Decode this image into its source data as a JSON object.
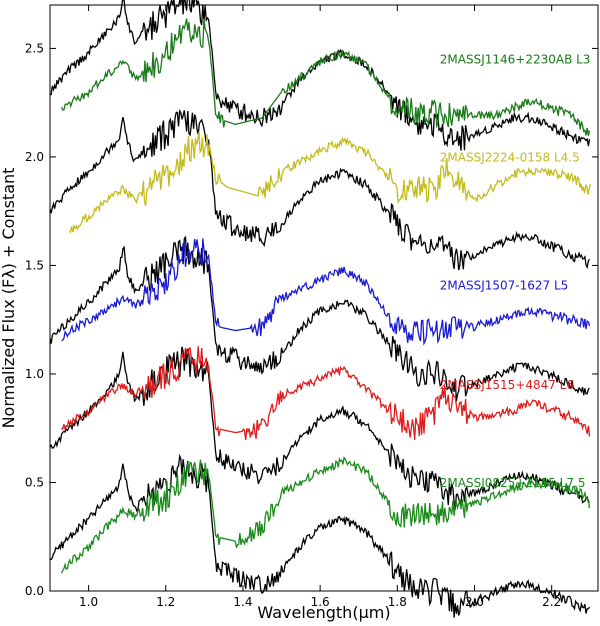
{
  "chart_data": {
    "type": "line",
    "title": "",
    "xlabel": "Wavelength(μm)",
    "ylabel": "Normalized Flux (Fλ) + Constant",
    "xlim": [
      0.9,
      2.32
    ],
    "ylim": [
      0.0,
      2.7
    ],
    "x_ticks": [
      1.0,
      1.2,
      1.4,
      1.6,
      1.8,
      2.0,
      2.2
    ],
    "x_tick_labels": [
      "1.0",
      "1.2",
      "1.4",
      "1.6",
      "1.8",
      "2.0",
      "2.2"
    ],
    "y_ticks": [
      0.0,
      0.5,
      1.0,
      1.5,
      2.0,
      2.5
    ],
    "y_tick_labels": [
      "0.0",
      "0.5",
      "1.0",
      "1.5",
      "2.0",
      "2.5"
    ],
    "grid": false,
    "series": [
      {
        "name": "2MASSJ1146+2230AB L3",
        "color": "#1a7a1a",
        "offset": 1.6,
        "label_x": 1.91,
        "label_y": 2.43,
        "gap": [
          1.35,
          1.5
        ],
        "x": [
          0.93,
          1.0,
          1.05,
          1.09,
          1.12,
          1.2,
          1.26,
          1.31,
          1.33,
          1.38,
          1.45,
          1.5,
          1.6,
          1.66,
          1.72,
          1.8,
          1.95,
          2.05,
          2.15,
          2.25,
          2.3
        ],
        "y": [
          0.62,
          0.7,
          0.78,
          0.85,
          0.76,
          0.88,
          0.98,
          0.97,
          0.58,
          0.55,
          0.58,
          0.7,
          0.84,
          0.88,
          0.82,
          0.62,
          0.59,
          0.59,
          0.66,
          0.59,
          0.5
        ]
      },
      {
        "name": "2MASSJ2224-0158 L4.5",
        "color": "#c4bb1c",
        "offset": 1.05,
        "label_x": 1.91,
        "label_y": 1.98,
        "gap": [
          1.34,
          1.44
        ],
        "x": [
          0.95,
          1.0,
          1.05,
          1.09,
          1.12,
          1.2,
          1.26,
          1.31,
          1.33,
          1.36,
          1.44,
          1.5,
          1.6,
          1.66,
          1.72,
          1.8,
          1.9,
          1.92,
          2.0,
          2.1,
          2.15,
          2.25,
          2.29,
          2.3
        ],
        "y": [
          0.6,
          0.68,
          0.75,
          0.8,
          0.75,
          0.87,
          0.98,
          1.02,
          0.85,
          0.81,
          0.77,
          0.88,
          0.98,
          1.02,
          0.97,
          0.8,
          0.8,
          0.9,
          0.75,
          0.87,
          0.89,
          0.86,
          0.8,
          0.8
        ]
      },
      {
        "name": "2MASSJ1507-1627 L5",
        "color": "#1a1ad4",
        "offset": 0.45,
        "label_x": 1.91,
        "label_y": 1.39,
        "gap": [
          1.34,
          1.42
        ],
        "x": [
          0.93,
          1.0,
          1.05,
          1.09,
          1.12,
          1.2,
          1.26,
          1.31,
          1.33,
          1.38,
          1.45,
          1.5,
          1.6,
          1.66,
          1.72,
          1.8,
          1.9,
          2.0,
          2.1,
          2.15,
          2.25,
          2.29,
          2.3
        ],
        "y": [
          0.72,
          0.8,
          0.85,
          0.9,
          0.86,
          0.98,
          1.13,
          1.11,
          0.77,
          0.75,
          0.77,
          0.9,
          0.98,
          1.03,
          0.97,
          0.75,
          0.75,
          0.77,
          0.82,
          0.84,
          0.8,
          0.78,
          0.75
        ]
      },
      {
        "name": "2MASSJ1515+4847 L6",
        "color": "#e01c1c",
        "offset": -0.05,
        "label_x": 1.91,
        "label_y": 0.93,
        "gap": [
          1.34,
          1.4
        ],
        "x": [
          0.93,
          1.0,
          1.05,
          1.09,
          1.12,
          1.2,
          1.26,
          1.31,
          1.33,
          1.38,
          1.45,
          1.5,
          1.6,
          1.66,
          1.72,
          1.8,
          1.85,
          1.9,
          1.92,
          2.0,
          2.1,
          2.15,
          2.25,
          2.29,
          2.3
        ],
        "y": [
          0.8,
          0.88,
          0.95,
          1.0,
          0.96,
          1.04,
          1.12,
          1.1,
          0.8,
          0.78,
          0.8,
          0.95,
          1.03,
          1.07,
          0.98,
          0.85,
          0.8,
          0.88,
          0.95,
          0.85,
          0.88,
          0.92,
          0.85,
          0.8,
          0.78
        ]
      },
      {
        "name": "2MASSJ0825+2115 L7.5",
        "color": "#1a8a1a",
        "offset": -0.55,
        "label_x": 1.91,
        "label_y": 0.48,
        "gap": [
          1.34,
          1.38
        ],
        "x": [
          0.93,
          1.0,
          1.05,
          1.09,
          1.12,
          1.2,
          1.26,
          1.31,
          1.33,
          1.38,
          1.45,
          1.5,
          1.6,
          1.66,
          1.72,
          1.8,
          1.9,
          2.0,
          2.1,
          2.15,
          2.25,
          2.29,
          2.3
        ],
        "y": [
          0.65,
          0.75,
          0.85,
          0.92,
          0.9,
          0.98,
          1.12,
          1.1,
          0.8,
          0.78,
          0.84,
          1.0,
          1.1,
          1.15,
          1.1,
          0.9,
          0.9,
          0.95,
          1.02,
          1.05,
          1.02,
          0.98,
          0.92
        ]
      }
    ],
    "reference": {
      "name": "template",
      "color": "#000000",
      "x": [
        0.9,
        0.95,
        1.0,
        1.05,
        1.08,
        1.09,
        1.1,
        1.12,
        1.15,
        1.2,
        1.25,
        1.28,
        1.31,
        1.33,
        1.38,
        1.45,
        1.5,
        1.55,
        1.6,
        1.66,
        1.72,
        1.8,
        1.85,
        1.9,
        1.95,
        2.0,
        2.05,
        2.1,
        2.15,
        2.2,
        2.25,
        2.3
      ],
      "y": [
        0.7,
        0.8,
        0.88,
        0.98,
        1.04,
        1.15,
        1.02,
        0.93,
        0.98,
        1.06,
        1.12,
        1.08,
        1.06,
        0.68,
        0.62,
        0.58,
        0.64,
        0.76,
        0.84,
        0.88,
        0.82,
        0.64,
        0.55,
        0.55,
        0.48,
        0.5,
        0.54,
        0.58,
        0.58,
        0.54,
        0.5,
        0.46
      ],
      "offsets": [
        1.6,
        1.05,
        0.45,
        -0.05,
        -0.55
      ]
    }
  }
}
